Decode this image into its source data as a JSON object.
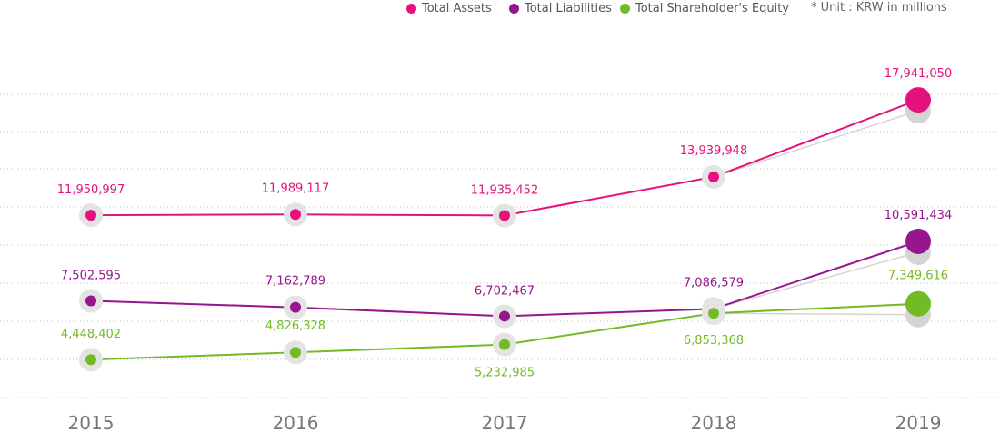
{
  "unit_note": "* Unit : KRW in millions",
  "chart_data": {
    "type": "line",
    "categories": [
      "2015",
      "2016",
      "2017",
      "2018",
      "2019"
    ],
    "series": [
      {
        "name": "Total Assets",
        "color": "#e5127d",
        "values": [
          11950997,
          11989117,
          11935452,
          13939948,
          17941050
        ],
        "labels": [
          "11,950,997",
          "11,989,117",
          "11,935,452",
          "13,939,948",
          "17,941,050"
        ]
      },
      {
        "name": "Total Liabilities",
        "color": "#97158d",
        "values": [
          7502595,
          7162789,
          6702467,
          7086579,
          10591434
        ],
        "labels": [
          "7,502,595",
          "7,162,789",
          "6,702,467",
          "7,086,579",
          "10,591,434"
        ]
      },
      {
        "name": "Total Shareholder's Equity",
        "color": "#72bb25",
        "values": [
          4448402,
          4826328,
          5232985,
          6853368,
          7349616
        ],
        "labels": [
          "4,448,402",
          "4,826,328",
          "5,232,985",
          "6,853,368",
          "7,349,616"
        ]
      }
    ],
    "shadow_series_color": "#d4d4d4",
    "gridlines": "dotted",
    "legend_position": "top-right"
  }
}
